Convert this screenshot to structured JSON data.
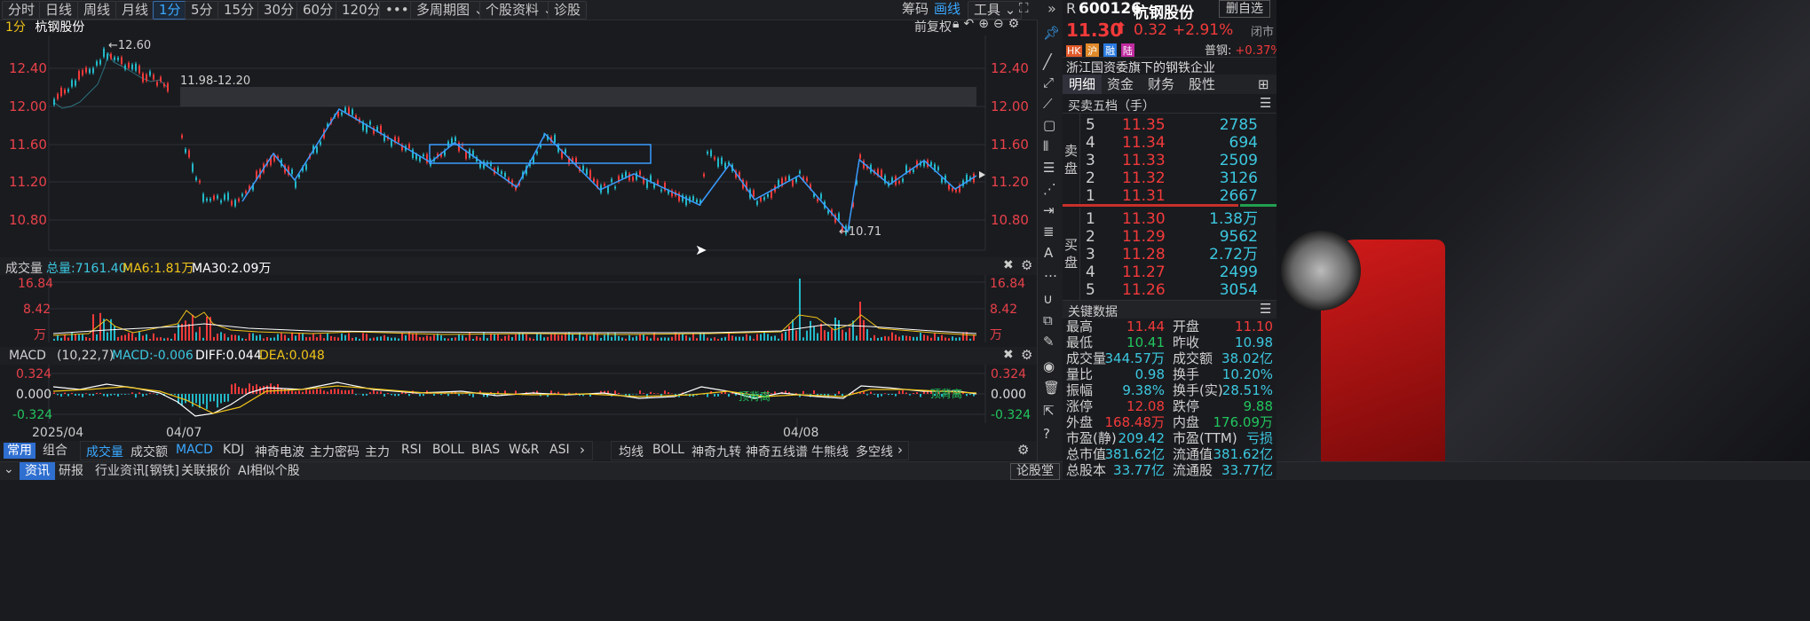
{
  "toolbar": {
    "periods": [
      "分时",
      "日线",
      "周线",
      "月线",
      "1分",
      "5分",
      "15分",
      "30分",
      "60分",
      "120分"
    ],
    "active_period": "1分",
    "more": "•••",
    "multi_period": "多周期图",
    "stock_info": "个股资料",
    "diagnose": "诊股",
    "chip": "筹码",
    "draw": "画线",
    "tools": "工具"
  },
  "chart": {
    "period_label": "1分",
    "stock_name": "杭钢股份",
    "adjust": "前复权",
    "price_ticks": [
      "12.40",
      "12.00",
      "11.60",
      "11.20",
      "10.80"
    ],
    "high_marker": "12.60",
    "low_marker": "10.71",
    "range_annotation": "11.98-12.20",
    "dates": [
      "2025/04",
      "04/07",
      "04/08"
    ]
  },
  "volume": {
    "label": "成交量",
    "total": "总量:7161.40",
    "ma6": "MA6:1.81万",
    "ma30": "MA30:2.09万",
    "ticks": [
      "16.84",
      "8.42",
      "万"
    ]
  },
  "macd": {
    "label": "MACD",
    "params": "(10,22,7)",
    "macd_val": "MACD:-0.006",
    "diff": "DIFF:0.044",
    "dea": "DEA:0.048",
    "ticks": [
      "0.324",
      "0.000",
      "-0.324"
    ],
    "top_signal_1": "顶背离",
    "top_signal_2": "顶背离"
  },
  "indicator_tabs": {
    "modes": [
      "常用",
      "组合"
    ],
    "tabs": [
      "成交量",
      "成交额",
      "MACD",
      "KDJ",
      "神奇电波",
      "主力密码",
      "主力",
      "RSI",
      "BOLL",
      "BIAS",
      "W&R",
      "ASI"
    ],
    "tabs2": [
      "均线",
      "BOLL",
      "神奇九转",
      "神奇五线谱",
      "牛熊线",
      "多空线"
    ]
  },
  "bottom_tabs": [
    "资讯",
    "研报",
    "行业资讯[钢铁]",
    "关联报价",
    "AI相似个股"
  ],
  "bottom_right": "论股堂",
  "quote": {
    "prefix": "R",
    "code": "600126",
    "name": "杭钢股份",
    "remove_btn": "删自选",
    "price": "11.30",
    "change": "0.32",
    "pct": "+2.91%",
    "status": "闭市",
    "badges": [
      "HK",
      "沪",
      "融",
      "陆"
    ],
    "peer_label": "普钢:",
    "peer_pct": "+0.37%",
    "desc": "浙江国资委旗下的钢铁企业",
    "tabs": [
      "明细",
      "资金",
      "财务",
      "股性"
    ],
    "orderbook_title": "买卖五档（手）",
    "sell_label": [
      "卖",
      "盘"
    ],
    "buy_label": [
      "买",
      "盘"
    ],
    "sells": [
      {
        "lv": "5",
        "price": "11.35",
        "vol": "2785"
      },
      {
        "lv": "4",
        "price": "11.34",
        "vol": "694"
      },
      {
        "lv": "3",
        "price": "11.33",
        "vol": "2509"
      },
      {
        "lv": "2",
        "price": "11.32",
        "vol": "3126"
      },
      {
        "lv": "1",
        "price": "11.31",
        "vol": "2667"
      }
    ],
    "buys": [
      {
        "lv": "1",
        "price": "11.30",
        "vol": "1.38万"
      },
      {
        "lv": "2",
        "price": "11.29",
        "vol": "9562"
      },
      {
        "lv": "3",
        "price": "11.28",
        "vol": "2.72万"
      },
      {
        "lv": "4",
        "price": "11.27",
        "vol": "2499"
      },
      {
        "lv": "5",
        "price": "11.26",
        "vol": "3054"
      }
    ],
    "key_title": "关键数据",
    "key": [
      [
        "最高",
        "11.44",
        "开盘",
        "11.10"
      ],
      [
        "最低",
        "10.41",
        "昨收",
        "10.98"
      ],
      [
        "成交量",
        "344.57万",
        "成交额",
        "38.02亿"
      ],
      [
        "量比",
        "0.98",
        "换手",
        "10.20%"
      ],
      [
        "振幅",
        "9.38%",
        "换手(实)",
        "28.51%"
      ],
      [
        "涨停",
        "12.08",
        "跌停",
        "9.88"
      ],
      [
        "外盘",
        "168.48万",
        "内盘",
        "176.09万"
      ],
      [
        "市盈(静)",
        "209.42",
        "市盈(TTM)",
        "亏损"
      ],
      [
        "总市值",
        "381.62亿",
        "流通值",
        "381.62亿"
      ],
      [
        "总股本",
        "33.77亿",
        "流通股",
        "33.77亿"
      ]
    ]
  },
  "colors": {
    "up": "#f23a3a",
    "down": "#22c55e",
    "accent": "#3aa8ff",
    "bg": "#1a1b1f"
  }
}
